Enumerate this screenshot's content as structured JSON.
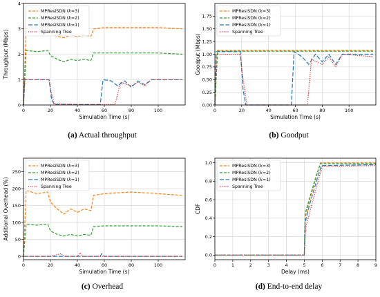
{
  "chart_data": [
    {
      "type": "line",
      "caption_letter": "(a)",
      "caption_text": " Actual throughput",
      "xlabel": "Simulation Time (s)",
      "ylabel": "Throughput (Mbps)",
      "xlim": [
        0,
        120
      ],
      "ylim": [
        0,
        4
      ],
      "xticks": [
        0,
        20,
        40,
        60,
        80,
        100
      ],
      "yticks": [
        0,
        1,
        2,
        3,
        4
      ],
      "grid": true,
      "legend_position": "top-left",
      "series": [
        {
          "name": "MPResiSDN (k=3)",
          "legend_main": "MPResiSDN (",
          "legend_k": "k",
          "legend_rest": "=3)",
          "color": "#ff7f0e",
          "dash": "4,2",
          "points": [
            [
              0,
              0
            ],
            [
              2,
              3.1
            ],
            [
              10,
              3.05
            ],
            [
              18,
              3.1
            ],
            [
              20,
              2.85
            ],
            [
              25,
              2.7
            ],
            [
              30,
              2.65
            ],
            [
              35,
              2.75
            ],
            [
              40,
              2.7
            ],
            [
              45,
              2.75
            ],
            [
              50,
              2.7
            ],
            [
              52,
              3.0
            ],
            [
              60,
              3.05
            ],
            [
              80,
              3.05
            ],
            [
              100,
              3.05
            ],
            [
              118,
              3.0
            ]
          ]
        },
        {
          "name": "MPResiSDN (k=2)",
          "legend_main": "MPResiSDN (",
          "legend_k": "k",
          "legend_rest": "=2)",
          "color": "#2ca02c",
          "dash": "4,2",
          "points": [
            [
              0,
              0
            ],
            [
              2,
              2.15
            ],
            [
              10,
              2.1
            ],
            [
              18,
              2.15
            ],
            [
              20,
              1.95
            ],
            [
              25,
              1.8
            ],
            [
              30,
              1.7
            ],
            [
              35,
              1.8
            ],
            [
              40,
              1.75
            ],
            [
              45,
              1.8
            ],
            [
              50,
              1.75
            ],
            [
              52,
              2.05
            ],
            [
              60,
              2.05
            ],
            [
              80,
              2.05
            ],
            [
              100,
              2.05
            ],
            [
              118,
              2.0
            ]
          ]
        },
        {
          "name": "MPResiSDN (k=1)",
          "legend_main": "MPResiSDN (",
          "legend_k": "k",
          "legend_rest": "=1)",
          "color": "#1f77b4",
          "dash": "6,2.5",
          "points": [
            [
              0,
              0
            ],
            [
              1,
              1.0
            ],
            [
              19,
              1.0
            ],
            [
              21,
              0.2
            ],
            [
              23,
              0.02
            ],
            [
              40,
              0.02
            ],
            [
              57,
              0.02
            ],
            [
              59,
              1.0
            ],
            [
              65,
              0.95
            ],
            [
              70,
              0.75
            ],
            [
              75,
              0.95
            ],
            [
              80,
              0.7
            ],
            [
              85,
              0.95
            ],
            [
              90,
              0.8
            ],
            [
              95,
              1.0
            ],
            [
              118,
              1.0
            ]
          ]
        },
        {
          "name": "Spanning Tree",
          "legend_main": "Spanning Tree",
          "legend_k": "",
          "legend_rest": "",
          "color": "#d62728",
          "dash": "1.2,1.6",
          "points": [
            [
              0,
              0
            ],
            [
              1,
              1.0
            ],
            [
              19,
              1.0
            ],
            [
              21,
              0.4
            ],
            [
              23,
              0.05
            ],
            [
              40,
              0.02
            ],
            [
              68,
              0.02
            ],
            [
              72,
              0.9
            ],
            [
              80,
              0.75
            ],
            [
              85,
              0.9
            ],
            [
              90,
              0.75
            ],
            [
              95,
              1.0
            ],
            [
              118,
              1.0
            ]
          ]
        }
      ]
    },
    {
      "type": "line",
      "caption_letter": "(b)",
      "caption_text": " Goodput",
      "xlabel": "Simulation Time (s)",
      "ylabel": "Goodput (Mbps)",
      "xlim": [
        0,
        120
      ],
      "ylim": [
        0,
        2
      ],
      "xticks": [
        0,
        20,
        40,
        60,
        80,
        100
      ],
      "yticks": [
        0.0,
        0.25,
        0.5,
        0.75,
        1.0,
        1.25,
        1.5,
        1.75
      ],
      "ytick_labels": [
        "0.00",
        "0.25",
        "0.50",
        "0.75",
        "1.00",
        "1.25",
        "1.50",
        "1.75"
      ],
      "grid": true,
      "legend_position": "top-left",
      "series": [
        {
          "name": "MPResiSDN (k=3)",
          "legend_main": "MPResiSDN (",
          "legend_k": "k",
          "legend_rest": "=3)",
          "color": "#ff7f0e",
          "dash": "4,2",
          "points": [
            [
              0,
              0
            ],
            [
              2,
              1.08
            ],
            [
              20,
              1.08
            ],
            [
              40,
              1.08
            ],
            [
              60,
              1.08
            ],
            [
              80,
              1.08
            ],
            [
              100,
              1.08
            ],
            [
              118,
              1.08
            ]
          ]
        },
        {
          "name": "MPResiSDN (k=2)",
          "legend_main": "MPResiSDN (",
          "legend_k": "k",
          "legend_rest": "=2)",
          "color": "#2ca02c",
          "dash": "4,2",
          "points": [
            [
              0,
              0
            ],
            [
              2,
              1.06
            ],
            [
              20,
              1.06
            ],
            [
              40,
              1.06
            ],
            [
              60,
              1.06
            ],
            [
              80,
              1.06
            ],
            [
              100,
              1.06
            ],
            [
              118,
              1.06
            ]
          ]
        },
        {
          "name": "MPResiSDN (k=1)",
          "legend_main": "MPResiSDN (",
          "legend_k": "k",
          "legend_rest": "=1)",
          "color": "#1f77b4",
          "dash": "6,2.5",
          "points": [
            [
              0,
              0
            ],
            [
              1,
              1.05
            ],
            [
              19,
              1.05
            ],
            [
              21,
              0.3
            ],
            [
              23,
              0.0
            ],
            [
              40,
              0.0
            ],
            [
              57,
              0.0
            ],
            [
              59,
              1.05
            ],
            [
              65,
              0.95
            ],
            [
              70,
              0.8
            ],
            [
              75,
              1.0
            ],
            [
              80,
              0.85
            ],
            [
              85,
              1.0
            ],
            [
              90,
              0.8
            ],
            [
              95,
              1.0
            ],
            [
              118,
              1.0
            ]
          ]
        },
        {
          "name": "Spanning Tree",
          "legend_main": "Spanning Tree",
          "legend_k": "",
          "legend_rest": "",
          "color": "#d62728",
          "dash": "1.2,1.6",
          "points": [
            [
              0,
              0
            ],
            [
              1,
              1.0
            ],
            [
              19,
              1.0
            ],
            [
              21,
              0.5
            ],
            [
              24,
              0.0
            ],
            [
              40,
              0.0
            ],
            [
              69,
              0.0
            ],
            [
              72,
              0.9
            ],
            [
              80,
              0.8
            ],
            [
              85,
              0.95
            ],
            [
              90,
              0.75
            ],
            [
              95,
              1.0
            ],
            [
              118,
              0.95
            ]
          ]
        }
      ]
    },
    {
      "type": "line",
      "caption_letter": "(c)",
      "caption_text": " Overhead",
      "xlabel": "Simulation Time (s)",
      "ylabel": "Additional Overhead (%)",
      "xlim": [
        0,
        120
      ],
      "ylim": [
        -10,
        290
      ],
      "xticks": [
        0,
        20,
        40,
        60,
        80,
        100
      ],
      "yticks": [
        0,
        50,
        100,
        150,
        200,
        250
      ],
      "grid": true,
      "legend_position": "top-left",
      "series": [
        {
          "name": "MPResiSDN (k=3)",
          "legend_main": "MPResiSDN (",
          "legend_k": "k",
          "legend_rest": "=3)",
          "color": "#ff7f0e",
          "dash": "4,2",
          "points": [
            [
              0,
              0
            ],
            [
              2,
              195
            ],
            [
              10,
              185
            ],
            [
              18,
              190
            ],
            [
              20,
              160
            ],
            [
              25,
              140
            ],
            [
              30,
              125
            ],
            [
              35,
              140
            ],
            [
              40,
              130
            ],
            [
              45,
              140
            ],
            [
              50,
              135
            ],
            [
              52,
              180
            ],
            [
              60,
              185
            ],
            [
              80,
              190
            ],
            [
              100,
              185
            ],
            [
              118,
              180
            ]
          ]
        },
        {
          "name": "MPResiSDN (k=2)",
          "legend_main": "MPResiSDN (",
          "legend_k": "k",
          "legend_rest": "=2)",
          "color": "#2ca02c",
          "dash": "4,2",
          "points": [
            [
              0,
              0
            ],
            [
              2,
              95
            ],
            [
              10,
              92
            ],
            [
              18,
              95
            ],
            [
              20,
              75
            ],
            [
              25,
              65
            ],
            [
              30,
              60
            ],
            [
              35,
              65
            ],
            [
              40,
              60
            ],
            [
              45,
              65
            ],
            [
              50,
              62
            ],
            [
              52,
              88
            ],
            [
              60,
              90
            ],
            [
              80,
              90
            ],
            [
              100,
              90
            ],
            [
              118,
              88
            ]
          ]
        },
        {
          "name": "MPResiSDN (k=1)",
          "legend_main": "MPResiSDN (",
          "legend_k": "k",
          "legend_rest": "=1)",
          "color": "#1f77b4",
          "dash": "6,2.5",
          "points": [
            [
              0,
              0
            ],
            [
              5,
              0
            ],
            [
              20,
              0
            ],
            [
              40,
              0
            ],
            [
              57,
              0
            ],
            [
              58,
              8
            ],
            [
              60,
              0
            ],
            [
              80,
              0
            ],
            [
              100,
              0
            ],
            [
              118,
              0
            ]
          ]
        },
        {
          "name": "Spanning Tree",
          "legend_main": "Spanning Tree",
          "legend_k": "",
          "legend_rest": "",
          "color": "#d62728",
          "dash": "1.2,1.6",
          "points": [
            [
              0,
              0
            ],
            [
              20,
              0
            ],
            [
              28,
              8
            ],
            [
              30,
              0
            ],
            [
              40,
              0
            ],
            [
              42,
              10
            ],
            [
              44,
              0
            ],
            [
              60,
              0
            ],
            [
              80,
              0
            ],
            [
              118,
              0
            ]
          ]
        }
      ]
    },
    {
      "type": "line",
      "caption_letter": "(d)",
      "caption_text": " End-to-end delay",
      "xlabel": "Delay (ms)",
      "ylabel": "CDF",
      "xlim": [
        0,
        9
      ],
      "ylim": [
        -0.05,
        1.05
      ],
      "xticks": [
        0,
        1,
        2,
        3,
        4,
        5,
        6,
        7,
        8,
        9
      ],
      "yticks": [
        0.0,
        0.2,
        0.4,
        0.6,
        0.8,
        1.0
      ],
      "ytick_labels": [
        "0.0",
        "0.2",
        "0.4",
        "0.6",
        "0.8",
        "1.0"
      ],
      "grid": true,
      "legend_position": "top-left",
      "series": [
        {
          "name": "MPResiSDN (k=3)",
          "legend_main": "MPResiSDN (",
          "legend_k": "k",
          "legend_rest": "=3)",
          "color": "#ff7f0e",
          "dash": "4,2",
          "points": [
            [
              0,
              0
            ],
            [
              5.0,
              0
            ],
            [
              5.05,
              0.4
            ],
            [
              5.3,
              0.6
            ],
            [
              5.6,
              0.8
            ],
            [
              5.9,
              1.0
            ],
            [
              9,
              1.0
            ]
          ]
        },
        {
          "name": "MPResiSDN (k=2)",
          "legend_main": "MPResiSDN (",
          "legend_k": "k",
          "legend_rest": "=2)",
          "color": "#2ca02c",
          "dash": "4,2",
          "points": [
            [
              0,
              0
            ],
            [
              5.0,
              0
            ],
            [
              5.05,
              0.45
            ],
            [
              5.3,
              0.62
            ],
            [
              5.6,
              0.82
            ],
            [
              5.9,
              0.99
            ],
            [
              9,
              0.99
            ]
          ]
        },
        {
          "name": "MPResiSDN (k=1)",
          "legend_main": "MPResiSDN (",
          "legend_k": "k",
          "legend_rest": "=1)",
          "color": "#1f77b4",
          "dash": "6,2.5",
          "points": [
            [
              0,
              0
            ],
            [
              5.0,
              0
            ],
            [
              5.05,
              0.35
            ],
            [
              5.3,
              0.55
            ],
            [
              5.65,
              0.78
            ],
            [
              5.95,
              0.97
            ],
            [
              9,
              0.98
            ]
          ]
        },
        {
          "name": "Spanning Tree",
          "legend_main": "Spanning Tree",
          "legend_k": "",
          "legend_rest": "",
          "color": "#d62728",
          "dash": "1.2,1.6",
          "points": [
            [
              0,
              0
            ],
            [
              5.0,
              0
            ],
            [
              5.08,
              0.3
            ],
            [
              5.35,
              0.5
            ],
            [
              5.7,
              0.75
            ],
            [
              6.0,
              0.96
            ],
            [
              9,
              0.97
            ]
          ]
        }
      ]
    }
  ]
}
